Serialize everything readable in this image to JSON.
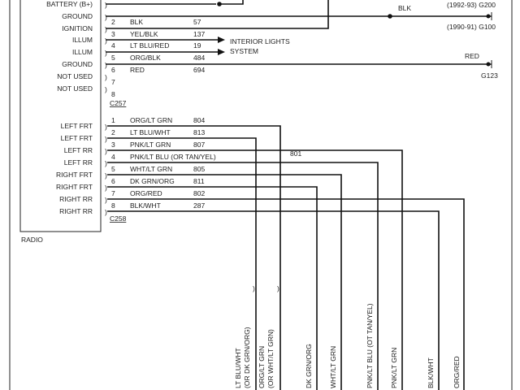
{
  "component_label": "RADIO",
  "connector_c257": {
    "name": "C257",
    "pins": [
      {
        "func": "BATTERY (B+)",
        "pin": "",
        "color": "",
        "circuit": ""
      },
      {
        "func": "GROUND",
        "pin": "2",
        "color": "BLK",
        "circuit": "57"
      },
      {
        "func": "IGNITION",
        "pin": "3",
        "color": "YEL/BLK",
        "circuit": "137"
      },
      {
        "func": "ILLUM",
        "pin": "4",
        "color": "LT BLU/RED",
        "circuit": "19"
      },
      {
        "func": "ILLUM",
        "pin": "5",
        "color": "ORG/BLK",
        "circuit": "484"
      },
      {
        "func": "GROUND",
        "pin": "6",
        "color": "RED",
        "circuit": "694"
      },
      {
        "func": "NOT USED",
        "pin": "7",
        "color": "",
        "circuit": ""
      },
      {
        "func": "NOT USED",
        "pin": "8",
        "color": "",
        "circuit": ""
      }
    ]
  },
  "interior_lights": {
    "line1": "INTERIOR LIGHTS",
    "line2": "SYSTEM"
  },
  "grounds": {
    "blk_label": "BLK",
    "g200": "(1992-93) G200",
    "g100": "(1990-91) G100",
    "red_label": "RED",
    "g123": "G123"
  },
  "connector_c258": {
    "name": "C258",
    "pins": [
      {
        "func": "LEFT FRT",
        "pin": "1",
        "color": "ORG/LT GRN",
        "circuit": "804"
      },
      {
        "func": "LEFT FRT",
        "pin": "2",
        "color": "LT BLU/WHT",
        "circuit": "813"
      },
      {
        "func": "LEFT RR",
        "pin": "3",
        "color": "PNK/LT GRN",
        "circuit": "807"
      },
      {
        "func": "LEFT RR",
        "pin": "4",
        "color": "PNK/LT BLU (OR TAN/YEL)",
        "circuit": "801"
      },
      {
        "func": "RIGHT FRT",
        "pin": "5",
        "color": "WHT/LT GRN",
        "circuit": "805"
      },
      {
        "func": "RIGHT FRT",
        "pin": "6",
        "color": "DK GRN/ORG",
        "circuit": "811"
      },
      {
        "func": "RIGHT RR",
        "pin": "7",
        "color": "ORG/RED",
        "circuit": "802"
      },
      {
        "func": "RIGHT RR",
        "pin": "8",
        "color": "BLK/WHT",
        "circuit": "287"
      }
    ]
  },
  "bottom_labels": [
    {
      "line1": "LT BLU/WHT",
      "line2": "(OR DK GRN/ORG)"
    },
    {
      "line1": "ORG/LT GRN",
      "line2": "(OR WHT/LT GRN)"
    },
    {
      "line1": "DK GRN/ORG",
      "line2": ""
    },
    {
      "line1": "WHT/LT GRN",
      "line2": ""
    },
    {
      "line1": "PNK/LT BLU (OT TAN/YEL)",
      "line2": ""
    },
    {
      "line1": "PNK/LT GRN",
      "line2": ""
    },
    {
      "line1": "BLK/WHT",
      "line2": ""
    },
    {
      "line1": "ORG/RED",
      "line2": ""
    }
  ]
}
